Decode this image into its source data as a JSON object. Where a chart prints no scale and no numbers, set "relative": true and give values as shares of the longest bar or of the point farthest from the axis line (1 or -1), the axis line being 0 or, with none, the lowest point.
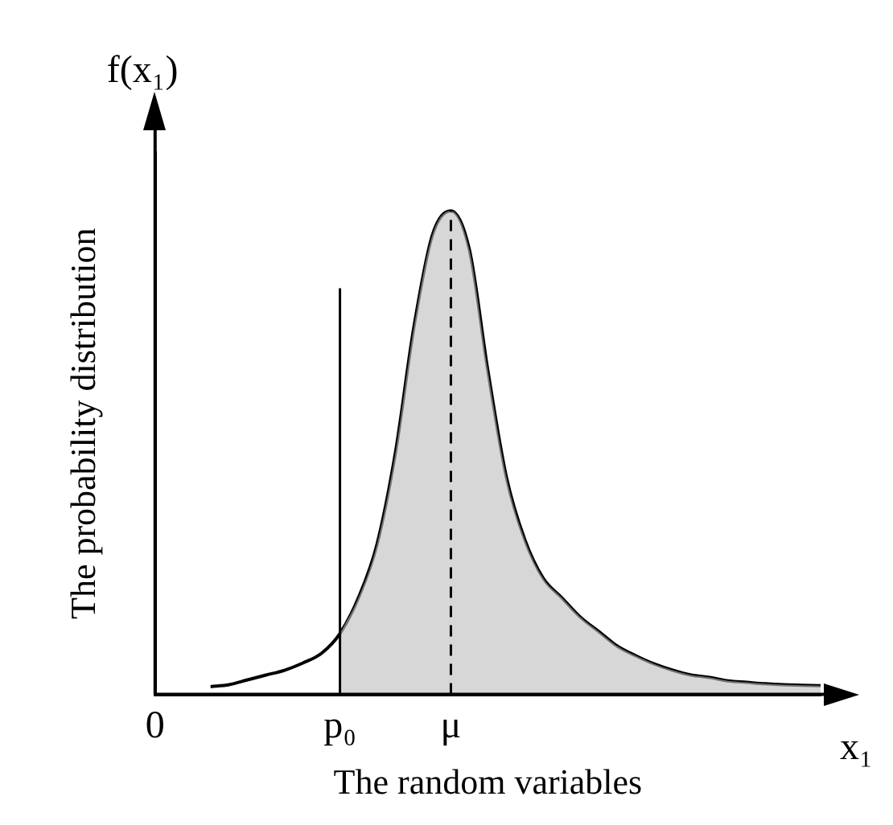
{
  "chart_data": {
    "type": "line",
    "xlabel": "The random variables",
    "ylabel": "The probability distribution",
    "annotations": [
      "f(x₁)",
      "x₁"
    ],
    "categories": [
      "0",
      null,
      null,
      null,
      null,
      null,
      null,
      null,
      null,
      null,
      "p₀",
      null,
      null,
      null,
      null,
      null,
      "μ",
      null,
      null,
      null,
      null,
      null,
      null,
      null,
      null,
      null,
      null,
      null,
      null,
      null,
      null,
      null,
      null,
      null,
      null,
      null,
      null
    ],
    "series": [
      {
        "color": "#000000",
        "values": [
          null,
          null,
          null,
          0.016,
          0.02,
          0.03,
          0.04,
          0.05,
          0.065,
          0.085,
          0.126,
          0.2,
          0.31,
          0.5,
          0.76,
          0.95,
          1,
          0.92,
          0.67,
          0.45,
          0.32,
          0.24,
          0.2,
          0.16,
          0.13,
          0.1,
          0.08,
          0.063,
          0.05,
          0.04,
          0.035,
          0.028,
          0.025,
          0.022,
          0.02,
          0.019,
          0.018
        ]
      },
      {
        "type": "area",
        "color": "#bdbdbd",
        "values": [
          null,
          null,
          null,
          null,
          null,
          null,
          null,
          null,
          null,
          null,
          0.126,
          0.2,
          0.31,
          0.5,
          0.76,
          0.95,
          1,
          0.92,
          0.67,
          0.45,
          0.32,
          0.24,
          0.2,
          0.16,
          0.13,
          0.1,
          0.08,
          0.063,
          0.05,
          0.04,
          0.035,
          0.028,
          0.025,
          0.022,
          0.02,
          0.019,
          0.018
        ]
      }
    ],
    "ref_lines": [
      {
        "axis": "x",
        "value": "p₀",
        "color": "#000000",
        "line_style": "solid"
      },
      {
        "axis": "x",
        "value": "μ",
        "color": "#000000",
        "line_style": "dashed"
      }
    ],
    "relative": true,
    "grid": false,
    "legend": false,
    "tick_labels": "x",
    "marker": "none"
  }
}
